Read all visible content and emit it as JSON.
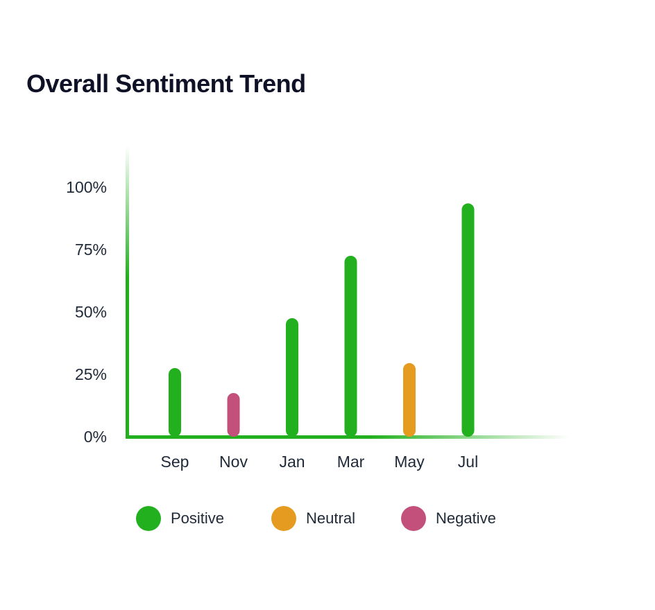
{
  "chart_data": {
    "type": "bar",
    "title": "Overall Sentiment Trend",
    "xlabel": "",
    "ylabel": "",
    "categories": [
      "Sep",
      "Nov",
      "Jan",
      "Mar",
      "May",
      "Jul"
    ],
    "values": [
      25,
      15,
      45,
      70,
      27,
      91
    ],
    "sentiment": [
      "Positive",
      "Negative",
      "Positive",
      "Positive",
      "Neutral",
      "Positive"
    ],
    "ylim": [
      0,
      100
    ],
    "yticks": [
      0,
      25,
      50,
      75,
      100
    ],
    "ytick_labels": [
      "0%",
      "25%",
      "50%",
      "75%",
      "100%"
    ],
    "grid": false,
    "legend_position": "bottom",
    "legend": [
      {
        "name": "Positive",
        "color": "#22b01f"
      },
      {
        "name": "Neutral",
        "color": "#e59a20"
      },
      {
        "name": "Negative",
        "color": "#c2507a"
      }
    ],
    "axis_color": "#22b01f"
  }
}
